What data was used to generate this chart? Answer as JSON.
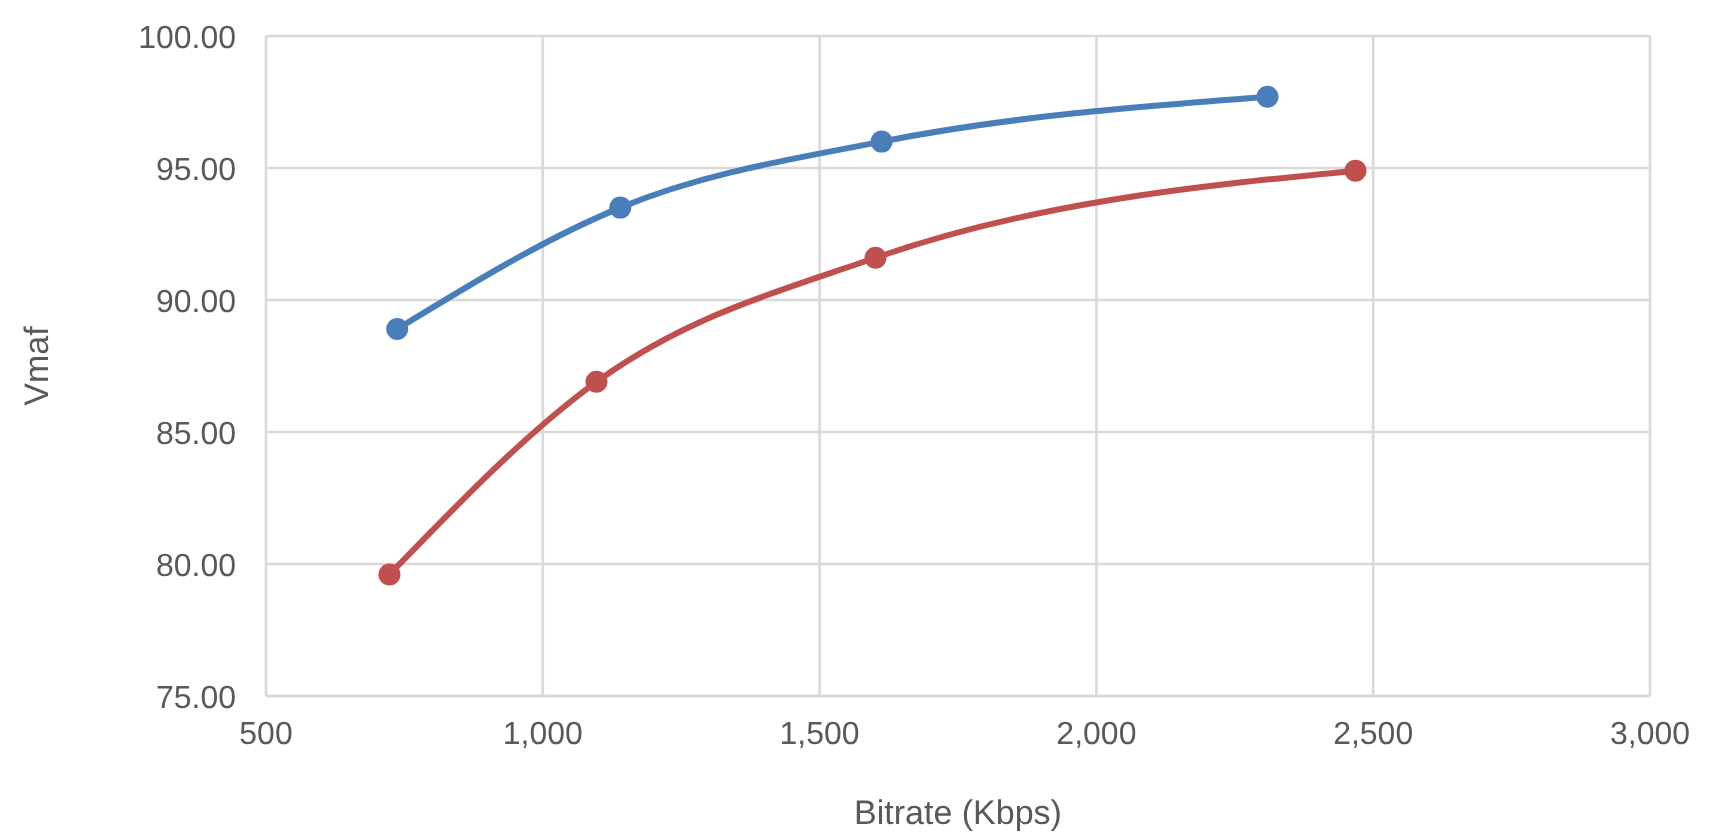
{
  "chart_data": {
    "type": "line",
    "xlabel": "Bitrate (Kbps)",
    "ylabel": "Vmaf",
    "series": [
      {
        "color": "#4a7ebb",
        "x": [
          737,
          1140,
          1612,
          2309
        ],
        "values": [
          88.9,
          93.5,
          96.0,
          97.7
        ]
      },
      {
        "color": "#c0504d",
        "x": [
          723,
          1097,
          1601,
          2468
        ],
        "values": [
          79.6,
          86.9,
          91.6,
          94.9
        ]
      }
    ],
    "xlim": [
      500,
      3000
    ],
    "xticks": [
      500,
      {
        "value": 1000,
        "label": "1,000"
      },
      {
        "value": 1500,
        "label": "1,500"
      },
      {
        "value": 2000,
        "label": "2,000"
      },
      {
        "value": 2500,
        "label": "2,500"
      },
      {
        "value": 3000,
        "label": "3,000"
      }
    ],
    "ylim": [
      75,
      100
    ],
    "yticks": [
      {
        "value": 75,
        "label": "75.00"
      },
      {
        "value": 80,
        "label": "80.00"
      },
      {
        "value": 85,
        "label": "85.00"
      },
      {
        "value": 90,
        "label": "90.00"
      },
      {
        "value": 95,
        "label": "95.00"
      },
      {
        "value": 100,
        "label": "100.00"
      }
    ],
    "grid": true,
    "marker": "circle",
    "line_style": "solid"
  }
}
